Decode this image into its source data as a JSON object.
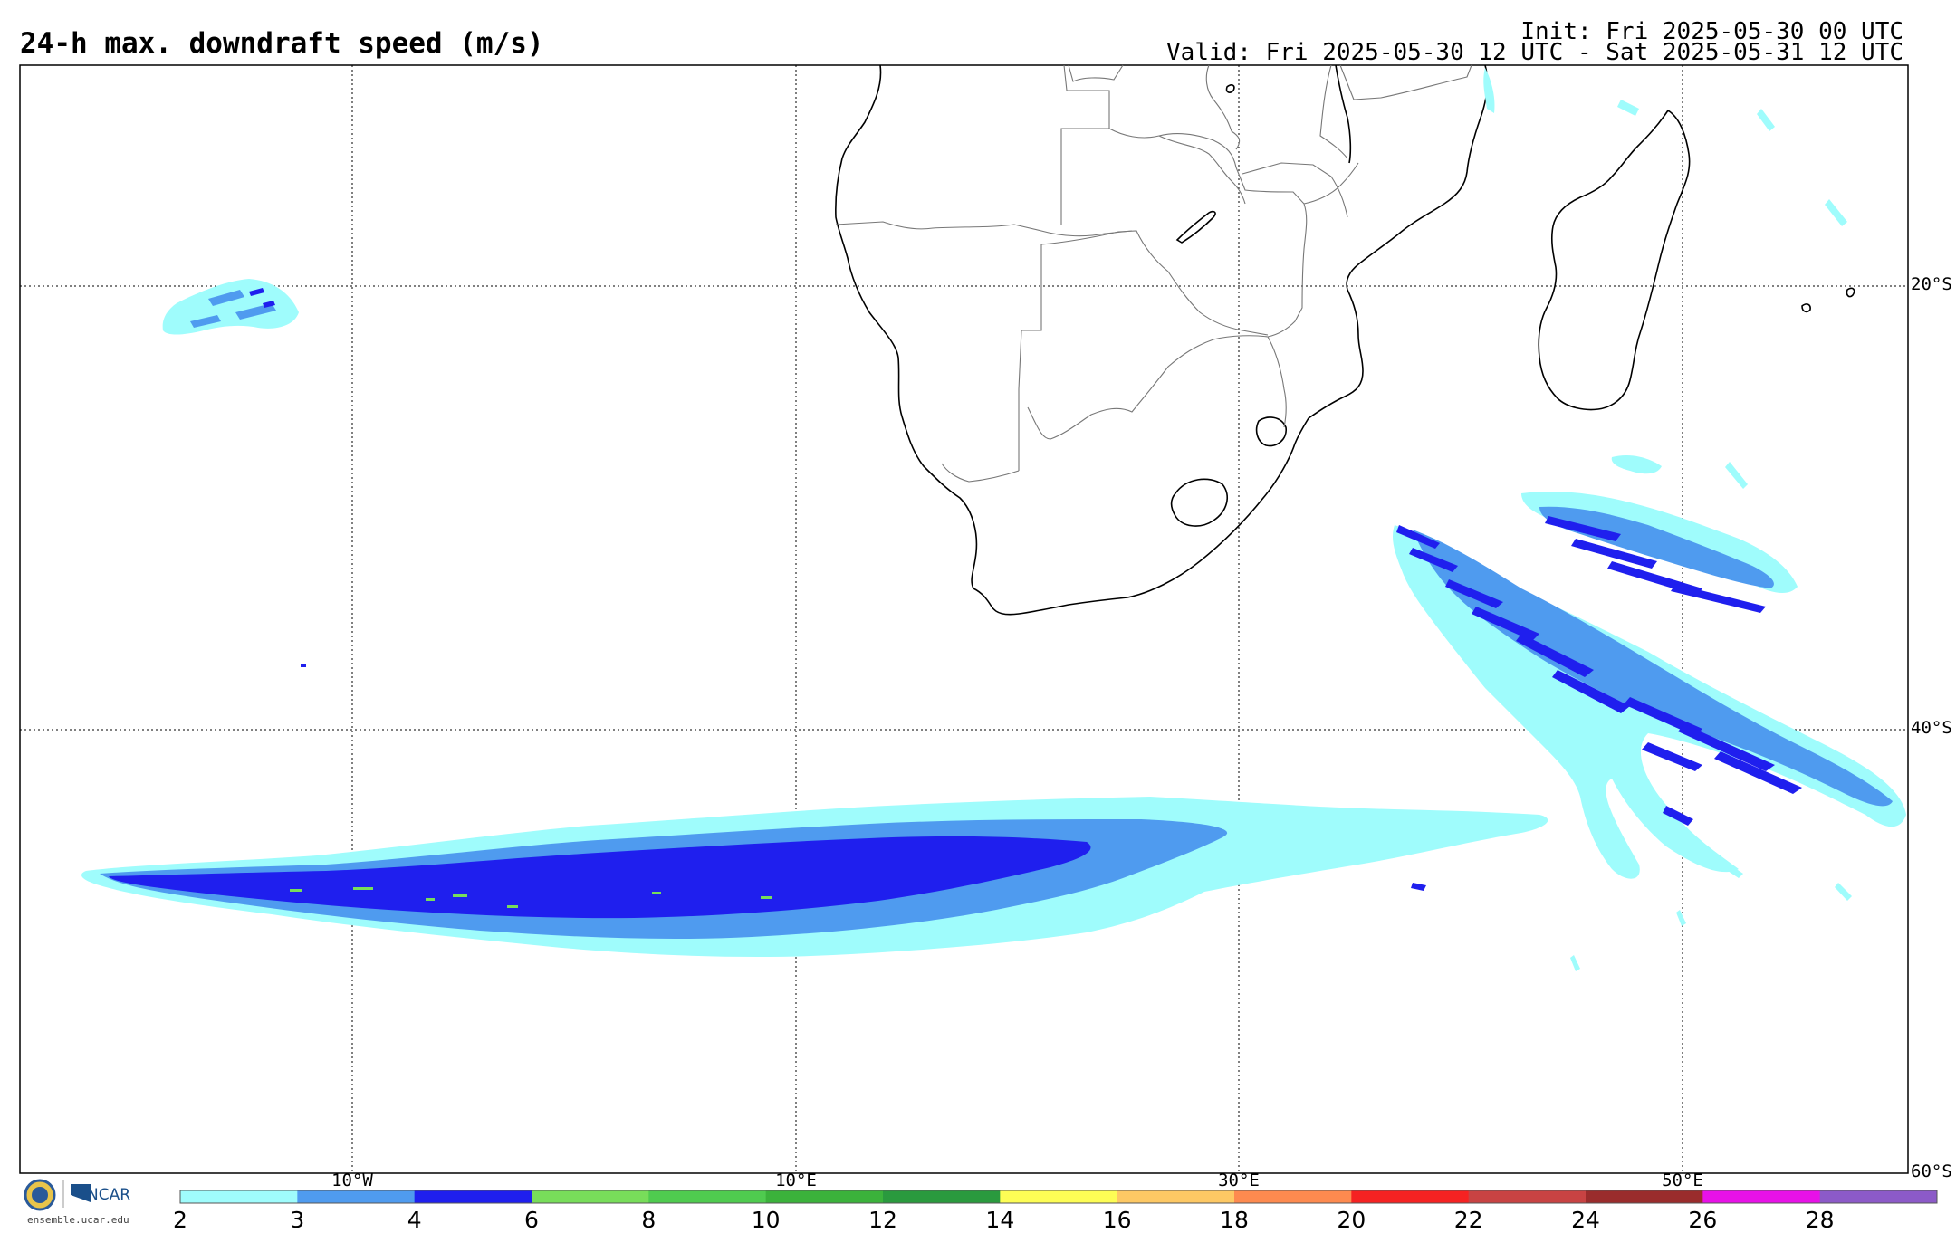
{
  "header": {
    "title": "24-h max. downdraft speed (m/s)",
    "init": "Init: Fri 2025-05-30 00 UTC",
    "valid": "Valid: Fri 2025-05-30 12 UTC - Sat 2025-05-31 12 UTC"
  },
  "grid": {
    "lat_labels": [
      "20°S",
      "40°S",
      "60°S"
    ],
    "lon_labels": [
      "10°W",
      "10°E",
      "30°E",
      "50°E"
    ]
  },
  "colorbar": {
    "ticks": [
      "2",
      "3",
      "4",
      "6",
      "8",
      "10",
      "12",
      "14",
      "16",
      "18",
      "20",
      "22",
      "24",
      "26",
      "28"
    ],
    "colors": [
      "#9ffcfc",
      "#4f9bef",
      "#1f1fee",
      "#78dd5a",
      "#4fcb4f",
      "#3bb23b",
      "#2a9a3e",
      "#fdfd55",
      "#fdc864",
      "#fd8a4f",
      "#f52222",
      "#c84343",
      "#9a2c2c",
      "#e811e8",
      "#8c5ac8"
    ]
  },
  "footer": {
    "logo_text": "NCAR",
    "url": "ensemble.ucar.edu"
  },
  "icons": {
    "nsf": "nsf-logo-icon",
    "ncar": "ncar-logo-icon"
  }
}
